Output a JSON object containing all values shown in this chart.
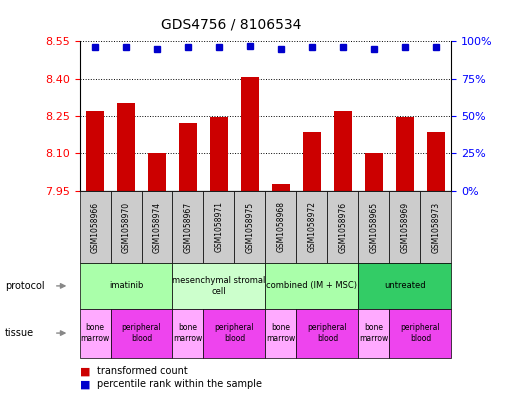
{
  "title": "GDS4756 / 8106534",
  "samples": [
    "GSM1058966",
    "GSM1058970",
    "GSM1058974",
    "GSM1058967",
    "GSM1058971",
    "GSM1058975",
    "GSM1058968",
    "GSM1058972",
    "GSM1058976",
    "GSM1058965",
    "GSM1058969",
    "GSM1058973"
  ],
  "bar_values": [
    8.27,
    8.3,
    8.1,
    8.22,
    8.245,
    8.405,
    7.975,
    8.185,
    8.27,
    8.1,
    8.245,
    8.185
  ],
  "percentile_values": [
    96,
    96,
    95,
    96,
    96,
    97,
    95,
    96,
    96,
    95,
    96,
    96
  ],
  "ylim": [
    7.95,
    8.55
  ],
  "ylim_right": [
    0,
    100
  ],
  "yticks_left": [
    7.95,
    8.1,
    8.25,
    8.4,
    8.55
  ],
  "yticks_right": [
    0,
    25,
    50,
    75,
    100
  ],
  "bar_color": "#cc0000",
  "dot_color": "#0000cc",
  "protocols": [
    {
      "label": "imatinib",
      "start": 0,
      "end": 3,
      "color": "#aaffaa"
    },
    {
      "label": "mesenchymal stromal\ncell",
      "start": 3,
      "end": 6,
      "color": "#ccffcc"
    },
    {
      "label": "combined (IM + MSC)",
      "start": 6,
      "end": 9,
      "color": "#aaffaa"
    },
    {
      "label": "untreated",
      "start": 9,
      "end": 12,
      "color": "#33cc66"
    }
  ],
  "tissues": [
    {
      "label": "bone\nmarrow",
      "start": 0,
      "end": 1,
      "color": "#ffaaff"
    },
    {
      "label": "peripheral\nblood",
      "start": 1,
      "end": 3,
      "color": "#ee44ee"
    },
    {
      "label": "bone\nmarrow",
      "start": 3,
      "end": 4,
      "color": "#ffaaff"
    },
    {
      "label": "peripheral\nblood",
      "start": 4,
      "end": 6,
      "color": "#ee44ee"
    },
    {
      "label": "bone\nmarrow",
      "start": 6,
      "end": 7,
      "color": "#ffaaff"
    },
    {
      "label": "peripheral\nblood",
      "start": 7,
      "end": 9,
      "color": "#ee44ee"
    },
    {
      "label": "bone\nmarrow",
      "start": 9,
      "end": 10,
      "color": "#ffaaff"
    },
    {
      "label": "peripheral\nblood",
      "start": 10,
      "end": 12,
      "color": "#ee44ee"
    }
  ],
  "legend_items": [
    {
      "label": "transformed count",
      "color": "#cc0000"
    },
    {
      "label": "percentile rank within the sample",
      "color": "#0000cc"
    }
  ],
  "sample_box_color": "#cccccc",
  "fig_width": 5.13,
  "fig_height": 3.93,
  "dpi": 100
}
